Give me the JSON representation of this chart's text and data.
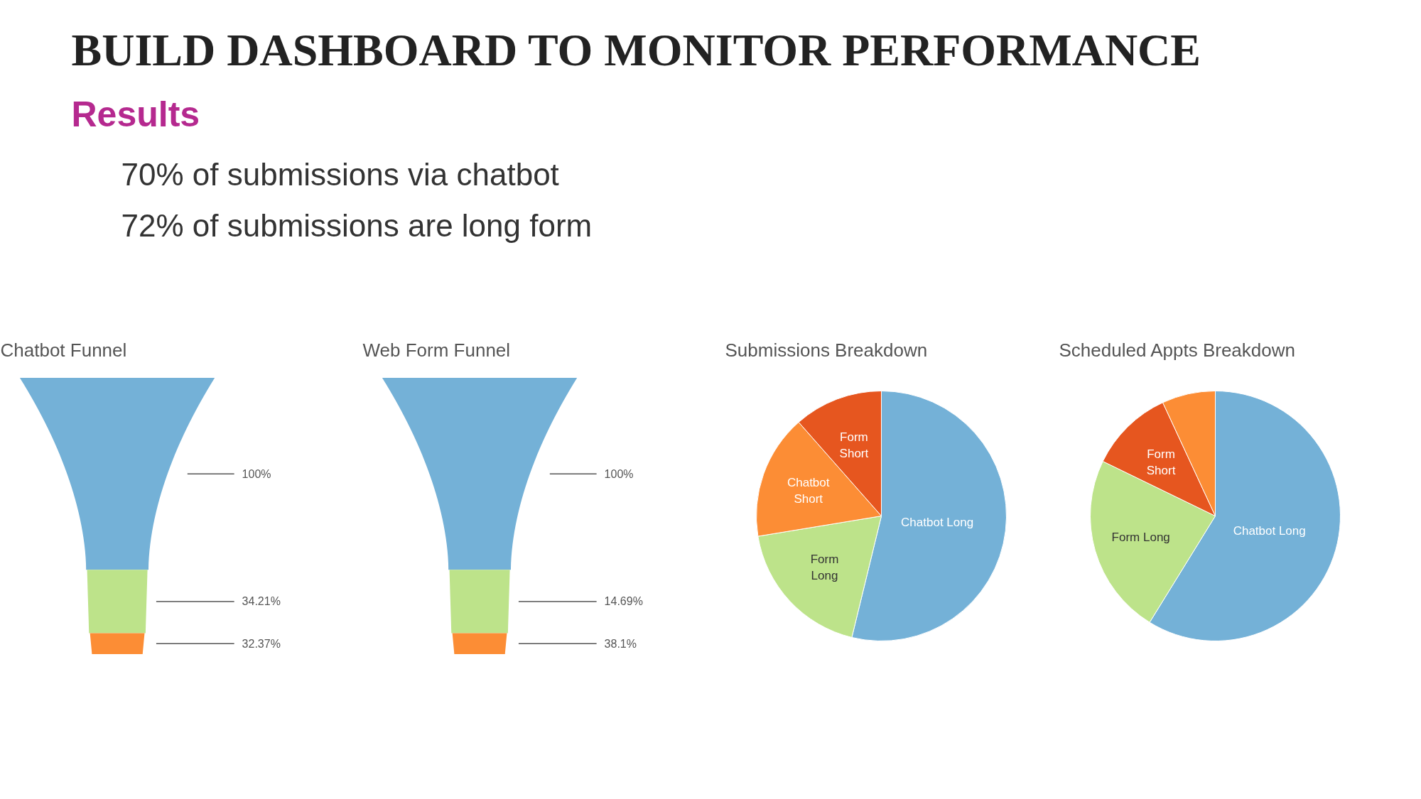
{
  "chart_data": [
    {
      "type": "other",
      "title": "BUILD DASHBOARD TO MONITOR PERFORMANCE",
      "subtitle": "Results",
      "annotations": [
        "70% of submissions via chatbot",
        "72% of submissions are long form"
      ]
    },
    {
      "type": "other",
      "title": "Chatbot Funnel",
      "categories": [
        null,
        null,
        null
      ],
      "values": [
        100,
        34.21,
        32.37
      ],
      "value_labels": [
        "100%",
        "34.21%",
        "32.37%"
      ],
      "colors": [
        "#74b1d7",
        "#bde38a",
        "#fc8d35"
      ]
    },
    {
      "type": "other",
      "title": "Web Form Funnel",
      "categories": [
        null,
        null,
        null
      ],
      "values": [
        100,
        14.69,
        38.1
      ],
      "value_labels": [
        "100%",
        "14.69%",
        "38.1%"
      ],
      "colors": [
        "#74b1d7",
        "#bde38a",
        "#fc8d35"
      ]
    },
    {
      "type": "pie",
      "title": "Submissions Breakdown",
      "categories": [
        "Chatbot Long",
        "Form Long",
        "Chatbot Short",
        "Form Short"
      ],
      "values": [
        53.8,
        18.6,
        16.1,
        11.5
      ],
      "colors": [
        "#74b1d7",
        "#bde38a",
        "#fc8d35",
        "#e6561f"
      ]
    },
    {
      "type": "pie",
      "title": "Scheduled Appts Breakdown",
      "categories": [
        "Chatbot Long",
        "Form Long",
        "Form Short",
        null
      ],
      "values": [
        58.8,
        23.4,
        10.9,
        6.9
      ],
      "colors": [
        "#74b1d7",
        "#bde38a",
        "#e6561f",
        "#fc8d35"
      ]
    }
  ]
}
